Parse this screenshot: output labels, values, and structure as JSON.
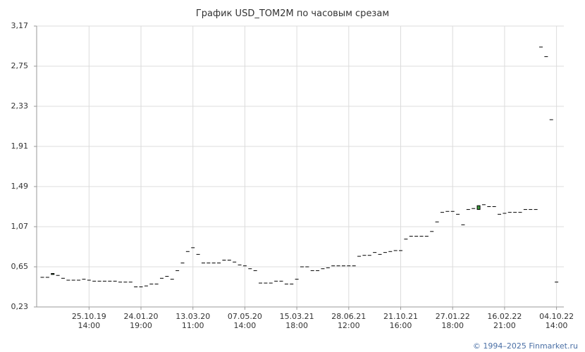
{
  "chart_data": {
    "type": "candlestick",
    "title": "График USD_TOM2M по часовым срезам",
    "footer": "© 1994–2025 Finmarket.ru",
    "categories": [
      null,
      null,
      null,
      null,
      null,
      null,
      null,
      null,
      null,
      "25.10.19\n14:00",
      null,
      null,
      null,
      null,
      null,
      null,
      null,
      null,
      null,
      "24.01.20\n19:00",
      null,
      null,
      null,
      null,
      null,
      null,
      null,
      null,
      null,
      "13.03.20\n11:00",
      null,
      null,
      null,
      null,
      null,
      null,
      null,
      null,
      null,
      "07.05.20\n14:00",
      null,
      null,
      null,
      null,
      null,
      null,
      null,
      null,
      null,
      "15.03.21\n18:00",
      null,
      null,
      null,
      null,
      null,
      null,
      null,
      null,
      null,
      "28.06.21\n12:00",
      null,
      null,
      null,
      null,
      null,
      null,
      null,
      null,
      null,
      "21.10.21\n16:00",
      null,
      null,
      null,
      null,
      null,
      null,
      null,
      null,
      null,
      "27.01.22\n18:00",
      null,
      null,
      null,
      null,
      null,
      null,
      null,
      null,
      null,
      "16.02.22\n21:00",
      null,
      null,
      null,
      null,
      null,
      null,
      null,
      null,
      null,
      "04.10.22\n14:00"
    ],
    "open": [
      0.54,
      0.54,
      0.57,
      0.56,
      0.53,
      0.51,
      0.51,
      0.51,
      0.52,
      0.51,
      0.5,
      0.5,
      0.5,
      0.5,
      0.5,
      0.49,
      0.49,
      0.49,
      0.44,
      0.44,
      0.45,
      0.47,
      0.47,
      0.53,
      0.55,
      0.52,
      0.61,
      0.69,
      0.81,
      0.85,
      0.78,
      0.69,
      0.69,
      0.69,
      0.69,
      0.72,
      0.72,
      0.7,
      0.67,
      0.66,
      0.63,
      0.61,
      0.48,
      0.48,
      0.48,
      0.5,
      0.5,
      0.47,
      0.47,
      0.52,
      0.65,
      0.65,
      0.61,
      0.61,
      0.63,
      0.64,
      0.66,
      0.66,
      0.66,
      0.66,
      0.66,
      0.76,
      0.77,
      0.77,
      0.8,
      0.78,
      0.8,
      0.81,
      0.82,
      0.82,
      0.94,
      0.97,
      0.97,
      0.97,
      0.97,
      1.02,
      1.12,
      1.22,
      1.23,
      1.23,
      1.2,
      1.09,
      1.25,
      1.26,
      1.25,
      1.3,
      1.28,
      1.28,
      1.2,
      1.21,
      1.22,
      1.22,
      1.22,
      1.25,
      1.25,
      1.25,
      2.95,
      2.85,
      2.19,
      0.49
    ],
    "close": [
      0.54,
      0.54,
      0.58,
      0.56,
      0.53,
      0.51,
      0.51,
      0.51,
      0.52,
      0.51,
      0.5,
      0.5,
      0.5,
      0.5,
      0.5,
      0.49,
      0.49,
      0.49,
      0.44,
      0.44,
      0.45,
      0.47,
      0.47,
      0.53,
      0.55,
      0.52,
      0.61,
      0.69,
      0.81,
      0.85,
      0.78,
      0.69,
      0.69,
      0.69,
      0.69,
      0.72,
      0.72,
      0.7,
      0.67,
      0.66,
      0.63,
      0.61,
      0.48,
      0.48,
      0.48,
      0.5,
      0.5,
      0.47,
      0.47,
      0.52,
      0.65,
      0.65,
      0.61,
      0.61,
      0.63,
      0.64,
      0.66,
      0.66,
      0.66,
      0.66,
      0.66,
      0.76,
      0.77,
      0.77,
      0.8,
      0.78,
      0.8,
      0.81,
      0.82,
      0.82,
      0.94,
      0.97,
      0.97,
      0.97,
      0.97,
      1.02,
      1.12,
      1.22,
      1.23,
      1.23,
      1.2,
      1.09,
      1.25,
      1.26,
      1.29,
      1.3,
      1.28,
      1.28,
      1.2,
      1.21,
      1.22,
      1.22,
      1.22,
      1.25,
      1.25,
      1.25,
      2.95,
      2.85,
      2.19,
      0.49
    ],
    "up_color": "#3c9a3c",
    "down_color": "#000000",
    "ylim": [
      0.23,
      3.17
    ],
    "yticks": [
      {
        "value": 0.23,
        "label": "0,23"
      },
      {
        "value": 0.65,
        "label": "0,65"
      },
      {
        "value": 1.07,
        "label": "1,07"
      },
      {
        "value": 1.49,
        "label": "1,49"
      },
      {
        "value": 1.91,
        "label": "1,91"
      },
      {
        "value": 2.33,
        "label": "2,33"
      },
      {
        "value": 2.75,
        "label": "2,75"
      },
      {
        "value": 3.17,
        "label": "3,17"
      }
    ],
    "grid": true
  }
}
